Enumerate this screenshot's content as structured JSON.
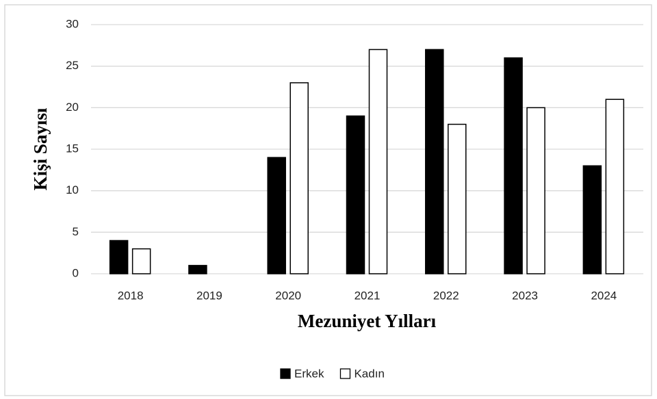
{
  "chart_data": {
    "type": "bar",
    "x_label": "Mezuniyet Yılları",
    "y_label": "Kişi Sayısı",
    "categories": [
      "2018",
      "2019",
      "2020",
      "2021",
      "2022",
      "2023",
      "2024"
    ],
    "series": [
      {
        "name": "Erkek",
        "color": "#000000",
        "values": [
          4,
          1,
          14,
          19,
          27,
          26,
          13
        ]
      },
      {
        "name": "Kadın",
        "color": "#ffffff",
        "values": [
          3,
          0,
          23,
          27,
          18,
          20,
          21
        ]
      }
    ],
    "ylim": [
      0,
      30
    ],
    "yticks": [
      0,
      5,
      10,
      15,
      20,
      25,
      30
    ],
    "grid": true,
    "legend": "bottom"
  }
}
